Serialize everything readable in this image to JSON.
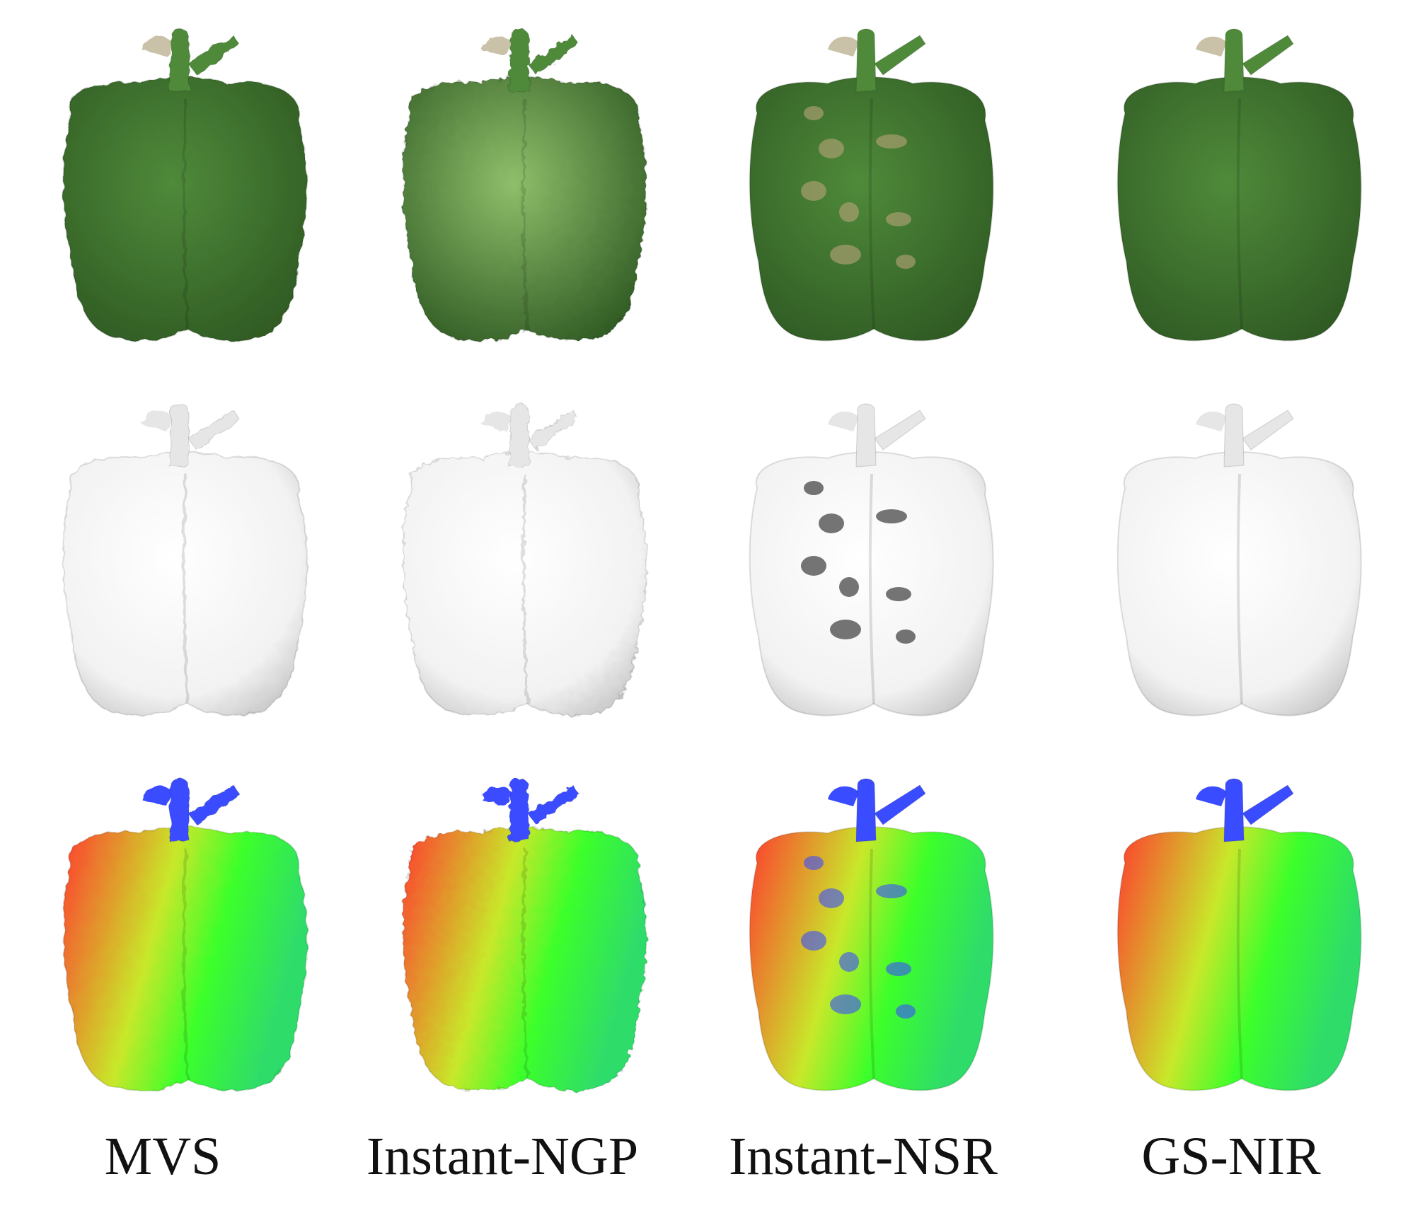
{
  "methods": [
    {
      "label": "MVS",
      "quality": "noisy"
    },
    {
      "label": "Instant-NGP",
      "quality": "very-noisy"
    },
    {
      "label": "Instant-NSR",
      "quality": "holes"
    },
    {
      "label": "GS-NIR",
      "quality": "smooth"
    }
  ],
  "rows": [
    {
      "kind": "textured"
    },
    {
      "kind": "geometry"
    },
    {
      "kind": "normal"
    }
  ],
  "colors": {
    "pepper_dark": "#2f5a23",
    "pepper_mid": "#4f8a3a",
    "pepper_light": "#8fbf6a",
    "gray_light": "#f2f2f2",
    "gray_shade": "#bcbcbc",
    "normal_red": "#ff3b2f",
    "normal_green": "#3cff2a",
    "normal_blue": "#3a4cff"
  }
}
